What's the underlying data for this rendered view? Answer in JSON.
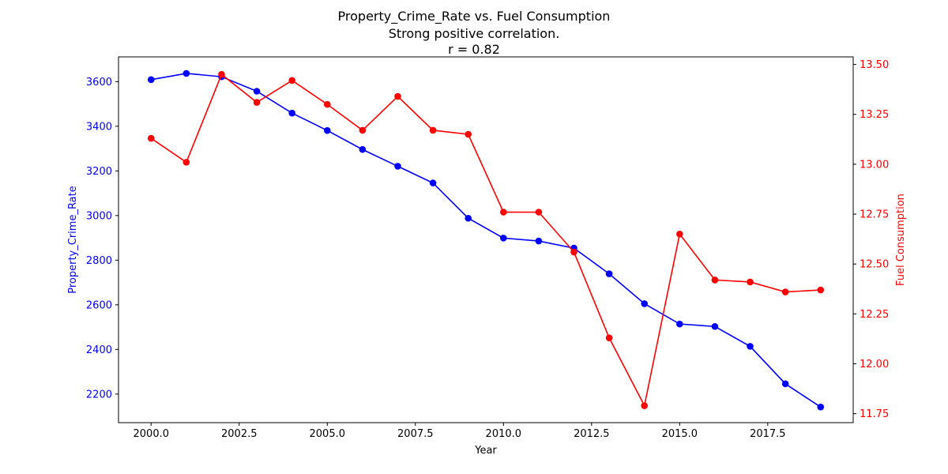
{
  "chart_data": {
    "type": "line",
    "title": [
      "Property_Crime_Rate vs. Fuel Consumption",
      "Strong positive correlation.",
      "r = 0.82"
    ],
    "xlabel": "Year",
    "x": [
      2000,
      2001,
      2002,
      2003,
      2004,
      2005,
      2006,
      2007,
      2008,
      2009,
      2010,
      2011,
      2012,
      2013,
      2014,
      2015,
      2016,
      2017,
      2018,
      2019
    ],
    "xlim": [
      1999.075,
      2019.925
    ],
    "xticks": [
      "2000.0",
      "2002.5",
      "2005.0",
      "2007.5",
      "2010.0",
      "2012.5",
      "2015.0",
      "2017.5"
    ],
    "xtick_values": [
      2000.0,
      2002.5,
      2005.0,
      2007.5,
      2010.0,
      2012.5,
      2015.0,
      2017.5
    ],
    "left_axis": {
      "label": "Property_Crime_Rate",
      "color": "#0000ff",
      "ylim": [
        2072,
        3711
      ],
      "ticks": [
        "2200",
        "2400",
        "2600",
        "2800",
        "3000",
        "3200",
        "3400",
        "3600"
      ],
      "tick_values": [
        2200,
        2400,
        2600,
        2800,
        3000,
        3200,
        3400,
        3600
      ]
    },
    "right_axis": {
      "label": "Fuel Consumption",
      "color": "#ff0000",
      "ylim": [
        11.705,
        13.538
      ],
      "ticks": [
        "11.75",
        "12.00",
        "12.25",
        "12.50",
        "12.75",
        "13.00",
        "13.25",
        "13.50"
      ],
      "tick_values": [
        11.75,
        12.0,
        12.25,
        12.5,
        12.75,
        13.0,
        13.25,
        13.5
      ]
    },
    "series": [
      {
        "name": "Property_Crime_Rate",
        "axis": "left",
        "color": "#0000ff",
        "values": [
          3609,
          3637,
          3622,
          3557,
          3459,
          3381,
          3296,
          3221,
          3146,
          2988,
          2899,
          2886,
          2854,
          2739,
          2605,
          2514,
          2503,
          2414,
          2246,
          2142
        ]
      },
      {
        "name": "Fuel Consumption",
        "axis": "right",
        "color": "#ff0000",
        "values": [
          13.13,
          13.01,
          13.45,
          13.31,
          13.42,
          13.3,
          13.17,
          13.34,
          13.17,
          13.15,
          12.76,
          12.76,
          12.56,
          12.13,
          11.79,
          12.65,
          12.42,
          12.41,
          12.36,
          12.37
        ]
      }
    ],
    "grid": false
  }
}
